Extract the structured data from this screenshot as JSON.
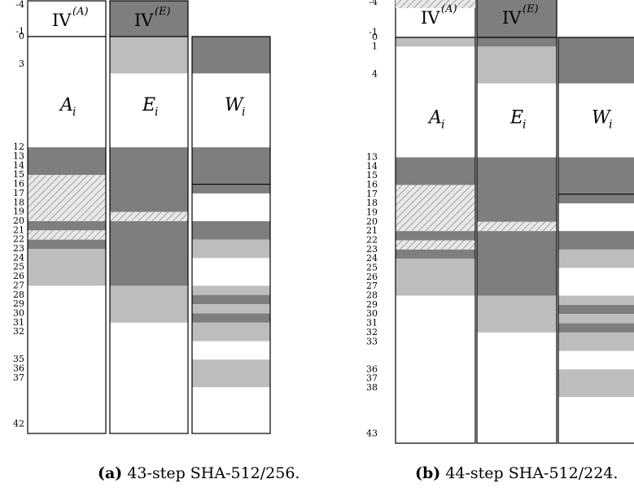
{
  "colors": {
    "dark": "#7e7e7e",
    "light": "#bdbdbd",
    "white": "#ffffff",
    "hatch_bg": "#e8e8e8",
    "hatch_line": "#8f8f8f",
    "border": "#000000"
  },
  "panels": [
    {
      "id": "a",
      "caption_label": "(a)",
      "caption_text": "43-step SHA-512/256.",
      "iv_a_label": "IV",
      "iv_a_sup": "(A)",
      "iv_e_label": "IV",
      "iv_e_sup": "(E)",
      "iv_a_style": "white",
      "iv_e_style": "dark",
      "iv_a_stripe": [],
      "col_a_label": "A",
      "col_e_label": "E",
      "col_w_label": "W",
      "col_sub": "i",
      "tick_labels": [
        "-4",
        "-1",
        "0",
        "3",
        "12",
        "13",
        "14",
        "15",
        "16",
        "17",
        "18",
        "19",
        "20",
        "21",
        "22",
        "23",
        "24",
        "25",
        "26",
        "27",
        "28",
        "29",
        "30",
        "31",
        "32",
        "35",
        "36",
        "37",
        "42"
      ],
      "a_segments": [
        {
          "from": 0,
          "to": 12,
          "style": "white"
        },
        {
          "from": 12,
          "to": 15,
          "style": "dark"
        },
        {
          "from": 15,
          "to": 20,
          "style": "hatch"
        },
        {
          "from": 20,
          "to": 21,
          "style": "dark"
        },
        {
          "from": 21,
          "to": 22,
          "style": "hatch"
        },
        {
          "from": 22,
          "to": 23,
          "style": "dark"
        },
        {
          "from": 23,
          "to": 27,
          "style": "light"
        },
        {
          "from": 27,
          "to": 43,
          "style": "white"
        }
      ],
      "e_segments": [
        {
          "from": 0,
          "to": 4,
          "style": "light"
        },
        {
          "from": 4,
          "to": 12,
          "style": "white"
        },
        {
          "from": 12,
          "to": 19,
          "style": "dark"
        },
        {
          "from": 19,
          "to": 20,
          "style": "hatch"
        },
        {
          "from": 20,
          "to": 27,
          "style": "dark"
        },
        {
          "from": 27,
          "to": 31,
          "style": "light"
        },
        {
          "from": 31,
          "to": 43,
          "style": "white"
        }
      ],
      "w_segments": [
        {
          "from": 0,
          "to": 4,
          "style": "dark"
        },
        {
          "from": 4,
          "to": 12,
          "style": "white"
        },
        {
          "from": 12,
          "to": 17,
          "style": "dark"
        },
        {
          "from": 17,
          "to": 20,
          "style": "white"
        },
        {
          "from": 20,
          "to": 22,
          "style": "dark"
        },
        {
          "from": 22,
          "to": 24,
          "style": "light"
        },
        {
          "from": 24,
          "to": 27,
          "style": "white"
        },
        {
          "from": 27,
          "to": 28,
          "style": "light"
        },
        {
          "from": 28,
          "to": 29,
          "style": "dark"
        },
        {
          "from": 29,
          "to": 30,
          "style": "light"
        },
        {
          "from": 30,
          "to": 31,
          "style": "dark"
        },
        {
          "from": 31,
          "to": 33,
          "style": "light"
        },
        {
          "from": 33,
          "to": 35,
          "style": "white"
        },
        {
          "from": 35,
          "to": 38,
          "style": "light"
        },
        {
          "from": 38,
          "to": 43,
          "style": "white"
        }
      ],
      "w_rule_at": 16
    },
    {
      "id": "b",
      "caption_label": "(b)",
      "caption_text": "44-step SHA-512/224.",
      "iv_a_label": "IV",
      "iv_a_sup": "(A)",
      "iv_e_label": "IV",
      "iv_e_sup": "(E)",
      "iv_a_style": "white",
      "iv_e_style": "dark",
      "iv_a_stripe": [
        {
          "from": -4,
          "to": -3,
          "style": "hatch"
        }
      ],
      "col_a_label": "A",
      "col_e_label": "E",
      "col_w_label": "W",
      "col_sub": "i",
      "tick_labels": [
        "-4",
        "-1",
        "0",
        "1",
        "4",
        "13",
        "14",
        "15",
        "16",
        "17",
        "18",
        "19",
        "20",
        "21",
        "22",
        "23",
        "24",
        "25",
        "26",
        "27",
        "28",
        "29",
        "30",
        "31",
        "32",
        "33",
        "36",
        "37",
        "38",
        "43"
      ],
      "a_segments": [
        {
          "from": 0,
          "to": 1,
          "style": "light"
        },
        {
          "from": 1,
          "to": 13,
          "style": "white"
        },
        {
          "from": 13,
          "to": 16,
          "style": "dark"
        },
        {
          "from": 16,
          "to": 21,
          "style": "hatch"
        },
        {
          "from": 21,
          "to": 22,
          "style": "dark"
        },
        {
          "from": 22,
          "to": 23,
          "style": "hatch"
        },
        {
          "from": 23,
          "to": 24,
          "style": "dark"
        },
        {
          "from": 24,
          "to": 28,
          "style": "light"
        },
        {
          "from": 28,
          "to": 44,
          "style": "white"
        }
      ],
      "e_segments": [
        {
          "from": 0,
          "to": 1,
          "style": "dark"
        },
        {
          "from": 1,
          "to": 5,
          "style": "light"
        },
        {
          "from": 5,
          "to": 13,
          "style": "white"
        },
        {
          "from": 13,
          "to": 20,
          "style": "dark"
        },
        {
          "from": 20,
          "to": 21,
          "style": "hatch"
        },
        {
          "from": 21,
          "to": 28,
          "style": "dark"
        },
        {
          "from": 28,
          "to": 32,
          "style": "light"
        },
        {
          "from": 32,
          "to": 44,
          "style": "white"
        }
      ],
      "w_segments": [
        {
          "from": 0,
          "to": 5,
          "style": "dark"
        },
        {
          "from": 5,
          "to": 13,
          "style": "white"
        },
        {
          "from": 13,
          "to": 18,
          "style": "dark"
        },
        {
          "from": 18,
          "to": 21,
          "style": "white"
        },
        {
          "from": 21,
          "to": 23,
          "style": "dark"
        },
        {
          "from": 23,
          "to": 25,
          "style": "light"
        },
        {
          "from": 25,
          "to": 28,
          "style": "white"
        },
        {
          "from": 28,
          "to": 29,
          "style": "light"
        },
        {
          "from": 29,
          "to": 30,
          "style": "dark"
        },
        {
          "from": 30,
          "to": 31,
          "style": "light"
        },
        {
          "from": 31,
          "to": 32,
          "style": "dark"
        },
        {
          "from": 32,
          "to": 34,
          "style": "light"
        },
        {
          "from": 34,
          "to": 36,
          "style": "white"
        },
        {
          "from": 36,
          "to": 39,
          "style": "light"
        },
        {
          "from": 39,
          "to": 44,
          "style": "white"
        }
      ],
      "w_rule_at": 17
    }
  ]
}
